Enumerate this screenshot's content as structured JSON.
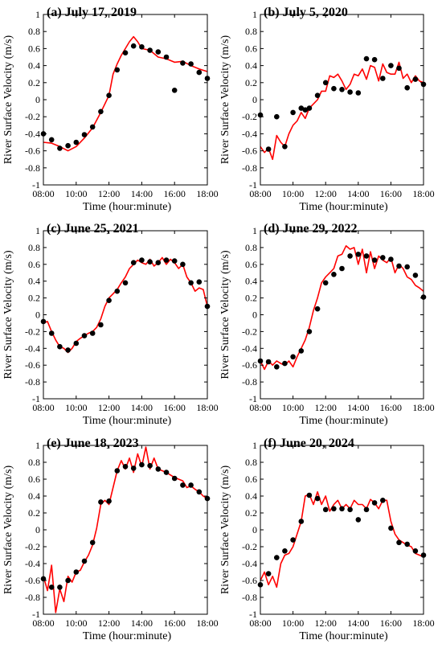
{
  "figure": {
    "ylabel": "River Surface Velocity (m/s)",
    "xlabel": "Time (hour:minute)"
  },
  "chart_data": [
    {
      "type": "line",
      "title": "(a) July 17, 2019",
      "xlabel": "Time (hour:minute)",
      "ylabel": "River Surface Velocity (m/s)",
      "xticks": [
        "08:00",
        "10:00",
        "12:00",
        "14:00",
        "16:00",
        "18:00"
      ],
      "yticks": [
        "-1",
        "-0.8",
        "-0.6",
        "-0.4",
        "-0.2",
        "0",
        "0.2",
        "0.4",
        "0.6",
        "0.8",
        "1"
      ],
      "xlim": [
        "08:00",
        "18:00"
      ],
      "ylim": [
        -1,
        1
      ],
      "line_color": "#ff0000",
      "marker_color": "#000000",
      "line": {
        "x": [
          "08:00",
          "08:30",
          "09:00",
          "09:30",
          "10:00",
          "10:30",
          "11:00",
          "11:30",
          "12:00",
          "12:15",
          "12:30",
          "12:45",
          "13:00",
          "13:15",
          "13:30",
          "13:45",
          "14:00",
          "14:30",
          "15:00",
          "15:30",
          "16:00",
          "16:30",
          "17:00",
          "17:30",
          "18:00"
        ],
        "y": [
          -0.5,
          -0.51,
          -0.55,
          -0.6,
          -0.55,
          -0.45,
          -0.33,
          -0.15,
          0.05,
          0.3,
          0.42,
          0.52,
          0.6,
          0.68,
          0.74,
          0.68,
          0.6,
          0.58,
          0.5,
          0.48,
          0.44,
          0.45,
          0.4,
          0.36,
          0.33
        ]
      },
      "points": {
        "x": [
          "08:00",
          "08:30",
          "09:00",
          "09:30",
          "10:00",
          "10:30",
          "11:00",
          "11:30",
          "12:00",
          "12:30",
          "13:00",
          "13:30",
          "14:00",
          "14:30",
          "15:00",
          "15:30",
          "16:00",
          "16:30",
          "17:00",
          "17:30",
          "18:00"
        ],
        "y": [
          -0.4,
          -0.47,
          -0.57,
          -0.54,
          -0.5,
          -0.41,
          -0.32,
          -0.14,
          0.05,
          0.35,
          0.55,
          0.63,
          0.62,
          0.58,
          0.56,
          0.5,
          0.11,
          0.43,
          0.42,
          0.32,
          0.25
        ]
      }
    },
    {
      "type": "line",
      "title": "(b) July 5, 2020",
      "xlabel": "Time (hour:minute)",
      "ylabel": "River Surface Velocity (m/s)",
      "xticks": [
        "08:00",
        "10:00",
        "12:00",
        "14:00",
        "16:00",
        "18:00"
      ],
      "yticks": [
        "-1",
        "-0.8",
        "-0.6",
        "-0.4",
        "-0.2",
        "0",
        "0.2",
        "0.4",
        "0.6",
        "0.8",
        "1"
      ],
      "xlim": [
        "08:00",
        "18:00"
      ],
      "ylim": [
        -1,
        1
      ],
      "line_color": "#ff0000",
      "marker_color": "#000000",
      "line": {
        "x": [
          "08:00",
          "08:15",
          "08:30",
          "08:45",
          "09:00",
          "09:15",
          "09:30",
          "09:45",
          "10:00",
          "10:15",
          "10:30",
          "10:45",
          "11:00",
          "11:15",
          "11:30",
          "11:45",
          "12:00",
          "12:15",
          "12:30",
          "12:45",
          "13:00",
          "13:15",
          "13:30",
          "13:45",
          "14:00",
          "14:15",
          "14:30",
          "14:45",
          "15:00",
          "15:15",
          "15:30",
          "15:45",
          "16:00",
          "16:15",
          "16:30",
          "16:45",
          "17:00",
          "17:15",
          "17:30",
          "17:45",
          "18:00"
        ],
        "y": [
          -0.55,
          -0.62,
          -0.57,
          -0.7,
          -0.42,
          -0.5,
          -0.55,
          -0.4,
          -0.3,
          -0.25,
          -0.15,
          -0.22,
          -0.1,
          -0.05,
          0.0,
          0.1,
          0.1,
          0.28,
          0.26,
          0.3,
          0.22,
          0.12,
          0.18,
          0.3,
          0.28,
          0.36,
          0.24,
          0.4,
          0.38,
          0.22,
          0.42,
          0.32,
          0.3,
          0.3,
          0.44,
          0.25,
          0.3,
          0.2,
          0.28,
          0.22,
          0.2
        ]
      },
      "points": {
        "x": [
          "08:00",
          "08:30",
          "09:00",
          "09:30",
          "10:00",
          "10:30",
          "10:45",
          "11:00",
          "11:30",
          "12:00",
          "12:30",
          "13:00",
          "13:30",
          "14:00",
          "14:30",
          "15:00",
          "15:30",
          "16:00",
          "16:30",
          "17:00",
          "17:30",
          "18:00"
        ],
        "y": [
          -0.18,
          -0.58,
          -0.2,
          -0.55,
          -0.15,
          -0.1,
          -0.12,
          -0.1,
          0.05,
          0.2,
          0.13,
          0.12,
          0.09,
          0.08,
          0.48,
          0.47,
          0.25,
          0.4,
          0.37,
          0.14,
          0.24,
          0.18
        ]
      }
    },
    {
      "type": "line",
      "title": "(c) June 25, 2021",
      "xlabel": "Time (hour:minute)",
      "ylabel": "River Surface Velocity (m/s)",
      "xticks": [
        "08:00",
        "10:00",
        "12:00",
        "14:00",
        "16:00",
        "18:00"
      ],
      "yticks": [
        "-1",
        "-0.8",
        "-0.6",
        "-0.4",
        "-0.2",
        "0",
        "0.2",
        "0.4",
        "0.6",
        "0.8",
        "1"
      ],
      "xlim": [
        "08:00",
        "18:00"
      ],
      "ylim": [
        -1,
        1
      ],
      "line_color": "#ff0000",
      "marker_color": "#000000",
      "line": {
        "x": [
          "08:00",
          "08:15",
          "08:30",
          "08:45",
          "09:00",
          "09:15",
          "09:30",
          "09:45",
          "10:00",
          "10:15",
          "10:30",
          "10:45",
          "11:00",
          "11:15",
          "11:30",
          "11:45",
          "12:00",
          "12:15",
          "12:30",
          "12:45",
          "13:00",
          "13:15",
          "13:30",
          "13:45",
          "14:00",
          "14:15",
          "14:30",
          "14:45",
          "15:00",
          "15:15",
          "15:30",
          "15:45",
          "16:00",
          "16:15",
          "16:30",
          "16:45",
          "17:00",
          "17:15",
          "17:30",
          "17:45",
          "18:00"
        ],
        "y": [
          -0.1,
          -0.08,
          -0.2,
          -0.3,
          -0.38,
          -0.4,
          -0.45,
          -0.4,
          -0.32,
          -0.28,
          -0.25,
          -0.22,
          -0.2,
          -0.15,
          -0.05,
          0.1,
          0.2,
          0.25,
          0.3,
          0.38,
          0.45,
          0.55,
          0.6,
          0.65,
          0.62,
          0.6,
          0.66,
          0.58,
          0.62,
          0.68,
          0.6,
          0.66,
          0.62,
          0.55,
          0.6,
          0.45,
          0.38,
          0.28,
          0.32,
          0.3,
          0.1
        ]
      },
      "points": {
        "x": [
          "08:00",
          "08:30",
          "09:00",
          "09:30",
          "10:00",
          "10:30",
          "11:00",
          "11:30",
          "12:00",
          "12:30",
          "13:00",
          "13:30",
          "14:00",
          "14:30",
          "15:00",
          "15:30",
          "16:00",
          "16:30",
          "17:00",
          "17:30",
          "18:00"
        ],
        "y": [
          -0.08,
          -0.22,
          -0.38,
          -0.42,
          -0.34,
          -0.25,
          -0.22,
          -0.12,
          0.17,
          0.28,
          0.38,
          0.62,
          0.65,
          0.63,
          0.62,
          0.65,
          0.64,
          0.6,
          0.38,
          0.39,
          0.1
        ]
      }
    },
    {
      "type": "line",
      "title": "(d) June 29, 2022",
      "xlabel": "Time (hour:minute)",
      "ylabel": "River Surface Velocity (m/s)",
      "xticks": [
        "08:00",
        "10:00",
        "12:00",
        "14:00",
        "16:00",
        "18:00"
      ],
      "yticks": [
        "-1",
        "-0.8",
        "-0.6",
        "-0.4",
        "-0.2",
        "0",
        "0.2",
        "0.4",
        "0.6",
        "0.8",
        "1"
      ],
      "xlim": [
        "08:00",
        "18:00"
      ],
      "ylim": [
        -1,
        1
      ],
      "line_color": "#ff0000",
      "marker_color": "#000000",
      "line": {
        "x": [
          "08:00",
          "08:15",
          "08:30",
          "08:45",
          "09:00",
          "09:15",
          "09:30",
          "09:45",
          "10:00",
          "10:15",
          "10:30",
          "10:45",
          "11:00",
          "11:15",
          "11:30",
          "11:45",
          "12:00",
          "12:15",
          "12:30",
          "12:45",
          "13:00",
          "13:15",
          "13:30",
          "13:45",
          "14:00",
          "14:15",
          "14:30",
          "14:45",
          "15:00",
          "15:15",
          "15:30",
          "15:45",
          "16:00",
          "16:15",
          "16:30",
          "16:45",
          "17:00",
          "17:15",
          "17:30",
          "17:45",
          "18:00"
        ],
        "y": [
          -0.55,
          -0.65,
          -0.55,
          -0.6,
          -0.55,
          -0.58,
          -0.6,
          -0.55,
          -0.62,
          -0.5,
          -0.4,
          -0.3,
          -0.15,
          0.05,
          0.2,
          0.38,
          0.45,
          0.5,
          0.55,
          0.7,
          0.72,
          0.82,
          0.78,
          0.8,
          0.6,
          0.78,
          0.5,
          0.75,
          0.55,
          0.7,
          0.65,
          0.62,
          0.68,
          0.5,
          0.6,
          0.55,
          0.45,
          0.42,
          0.35,
          0.32,
          0.28
        ]
      },
      "points": {
        "x": [
          "08:00",
          "08:30",
          "09:00",
          "09:30",
          "10:00",
          "10:30",
          "11:00",
          "11:30",
          "12:00",
          "12:30",
          "13:00",
          "13:30",
          "14:00",
          "14:30",
          "15:00",
          "15:30",
          "16:00",
          "16:30",
          "17:00",
          "17:30",
          "18:00"
        ],
        "y": [
          -0.55,
          -0.56,
          -0.62,
          -0.58,
          -0.5,
          -0.43,
          -0.2,
          0.07,
          0.38,
          0.48,
          0.55,
          0.7,
          0.72,
          0.7,
          0.65,
          0.68,
          0.66,
          0.58,
          0.57,
          0.47,
          0.21
        ]
      }
    },
    {
      "type": "line",
      "title": "(e) June 18, 2023",
      "xlabel": "Time (hour:minute)",
      "ylabel": "River Surface Velocity (m/s)",
      "xticks": [
        "08:00",
        "10:00",
        "12:00",
        "14:00",
        "16:00",
        "18:00"
      ],
      "yticks": [
        "-1",
        "-0.8",
        "-0.6",
        "-0.4",
        "-0.2",
        "0",
        "0.2",
        "0.4",
        "0.6",
        "0.8",
        "1"
      ],
      "xlim": [
        "08:00",
        "18:00"
      ],
      "ylim": [
        -1,
        1
      ],
      "line_color": "#ff0000",
      "marker_color": "#000000",
      "line": {
        "x": [
          "08:00",
          "08:15",
          "08:30",
          "08:45",
          "09:00",
          "09:15",
          "09:30",
          "09:45",
          "10:00",
          "10:15",
          "10:30",
          "10:45",
          "11:00",
          "11:15",
          "11:30",
          "11:45",
          "12:00",
          "12:15",
          "12:30",
          "12:45",
          "13:00",
          "13:15",
          "13:30",
          "13:45",
          "14:00",
          "14:15",
          "14:30",
          "14:45",
          "15:00",
          "15:15",
          "15:30",
          "15:45",
          "16:00",
          "16:15",
          "16:30",
          "16:45",
          "17:00",
          "17:15",
          "17:30",
          "17:45",
          "18:00"
        ],
        "y": [
          -0.55,
          -0.72,
          -0.42,
          -0.98,
          -0.7,
          -0.85,
          -0.55,
          -0.62,
          -0.5,
          -0.48,
          -0.38,
          -0.3,
          -0.18,
          0.02,
          0.3,
          0.35,
          0.3,
          0.5,
          0.7,
          0.82,
          0.72,
          0.85,
          0.68,
          0.9,
          0.75,
          0.98,
          0.72,
          0.85,
          0.72,
          0.7,
          0.68,
          0.65,
          0.62,
          0.6,
          0.58,
          0.5,
          0.52,
          0.48,
          0.45,
          0.4,
          0.37
        ]
      },
      "points": {
        "x": [
          "08:00",
          "08:30",
          "09:00",
          "09:30",
          "10:00",
          "10:30",
          "11:00",
          "11:30",
          "12:00",
          "12:30",
          "13:00",
          "13:30",
          "14:00",
          "14:30",
          "15:00",
          "15:30",
          "16:00",
          "16:30",
          "17:00",
          "17:30",
          "18:00"
        ],
        "y": [
          -0.58,
          -0.68,
          -0.68,
          -0.6,
          -0.5,
          -0.37,
          -0.15,
          0.33,
          0.34,
          0.7,
          0.75,
          0.73,
          0.77,
          0.76,
          0.72,
          0.68,
          0.61,
          0.53,
          0.53,
          0.45,
          0.37
        ]
      }
    },
    {
      "type": "line",
      "title": "(f) June 20, 2024",
      "xlabel": "Time (hour:minute)",
      "ylabel": "River Surface Velocity (m/s)",
      "xticks": [
        "08:00",
        "10:00",
        "12:00",
        "14:00",
        "16:00",
        "18:00"
      ],
      "yticks": [
        "-1",
        "-0.8",
        "-0.6",
        "-0.4",
        "-0.2",
        "0",
        "0.2",
        "0.4",
        "0.6",
        "0.8",
        "1"
      ],
      "xlim": [
        "08:00",
        "18:00"
      ],
      "ylim": [
        -1,
        1
      ],
      "line_color": "#ff0000",
      "marker_color": "#000000",
      "line": {
        "x": [
          "08:00",
          "08:15",
          "08:30",
          "08:45",
          "09:00",
          "09:15",
          "09:30",
          "09:45",
          "10:00",
          "10:15",
          "10:30",
          "10:45",
          "11:00",
          "11:15",
          "11:30",
          "11:45",
          "12:00",
          "12:15",
          "12:30",
          "12:45",
          "13:00",
          "13:15",
          "13:30",
          "13:45",
          "14:00",
          "14:15",
          "14:30",
          "14:45",
          "15:00",
          "15:15",
          "15:30",
          "15:45",
          "16:00",
          "16:15",
          "16:30",
          "16:45",
          "17:00",
          "17:15",
          "17:30",
          "17:45",
          "18:00"
        ],
        "y": [
          -0.6,
          -0.5,
          -0.65,
          -0.55,
          -0.68,
          -0.4,
          -0.3,
          -0.28,
          -0.2,
          -0.05,
          0.1,
          0.4,
          0.42,
          0.3,
          0.45,
          0.3,
          0.4,
          0.22,
          0.3,
          0.35,
          0.25,
          0.3,
          0.25,
          0.35,
          0.3,
          0.3,
          0.25,
          0.36,
          0.32,
          0.25,
          0.35,
          0.35,
          0.1,
          -0.05,
          -0.12,
          -0.15,
          -0.18,
          -0.2,
          -0.28,
          -0.3,
          -0.32
        ]
      },
      "points": {
        "x": [
          "08:00",
          "08:30",
          "09:00",
          "09:30",
          "10:00",
          "10:30",
          "11:00",
          "11:30",
          "12:00",
          "12:30",
          "13:00",
          "13:30",
          "14:00",
          "14:30",
          "15:00",
          "15:30",
          "16:00",
          "16:30",
          "17:00",
          "17:30",
          "18:00"
        ],
        "y": [
          -0.65,
          -0.52,
          -0.33,
          -0.25,
          -0.12,
          0.1,
          0.41,
          0.37,
          0.24,
          0.25,
          0.25,
          0.24,
          0.12,
          0.24,
          0.32,
          0.35,
          0.02,
          -0.15,
          -0.17,
          -0.25,
          -0.3
        ]
      }
    }
  ]
}
